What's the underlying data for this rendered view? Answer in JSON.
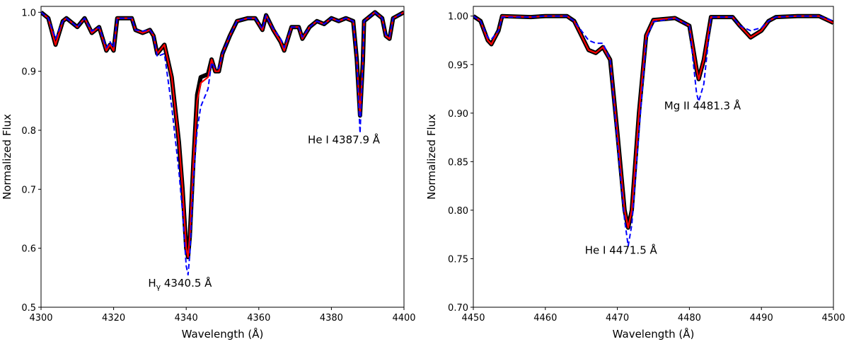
{
  "chart_data": [
    {
      "type": "line",
      "xlabel": "Wavelength (Å)",
      "ylabel": "Normalized Flux",
      "xlim": [
        4300,
        4400
      ],
      "ylim": [
        0.5,
        1.01
      ],
      "xticks": [
        4300,
        4320,
        4340,
        4360,
        4380,
        4400
      ],
      "yticks": [
        0.5,
        0.6,
        0.7,
        0.8,
        0.9,
        1.0
      ],
      "ytick_decimals": 1,
      "grid": false,
      "x": [
        4300,
        4302,
        4304,
        4306,
        4307,
        4310,
        4312,
        4314,
        4316,
        4318,
        4319,
        4320,
        4321,
        4325,
        4326,
        4328,
        4330,
        4331,
        4332,
        4334,
        4336,
        4338,
        4339,
        4340,
        4340.5,
        4341,
        4342,
        4343,
        4344,
        4346,
        4347,
        4348,
        4349,
        4350,
        4352,
        4354,
        4357,
        4359,
        4361,
        4362,
        4364,
        4366,
        4367,
        4369,
        4371,
        4372,
        4374,
        4376,
        4378,
        4380,
        4382,
        4384,
        4386,
        4387,
        4387.9,
        4388.7,
        4389,
        4392,
        4394,
        4395,
        4396,
        4397,
        4400
      ],
      "series": [
        {
          "color": "#000000",
          "style": "solid-thick",
          "values": [
            1.0,
            0.99,
            0.945,
            0.985,
            0.99,
            0.975,
            0.99,
            0.965,
            0.975,
            0.935,
            0.945,
            0.935,
            0.99,
            0.99,
            0.97,
            0.965,
            0.97,
            0.96,
            0.93,
            0.945,
            0.89,
            0.78,
            0.7,
            0.6,
            0.585,
            0.62,
            0.75,
            0.86,
            0.89,
            0.895,
            0.92,
            0.9,
            0.9,
            0.93,
            0.96,
            0.985,
            0.99,
            0.99,
            0.97,
            0.995,
            0.97,
            0.95,
            0.935,
            0.975,
            0.975,
            0.955,
            0.975,
            0.985,
            0.98,
            0.99,
            0.985,
            0.99,
            0.985,
            0.92,
            0.825,
            0.92,
            0.985,
            1.0,
            0.99,
            0.96,
            0.955,
            0.99,
            1.0
          ]
        },
        {
          "color": "#ff0000",
          "style": "solid",
          "values": [
            1.0,
            0.99,
            0.945,
            0.985,
            0.99,
            0.975,
            0.99,
            0.965,
            0.975,
            0.935,
            0.945,
            0.935,
            0.99,
            0.99,
            0.97,
            0.965,
            0.97,
            0.96,
            0.93,
            0.945,
            0.89,
            0.78,
            0.7,
            0.6,
            0.585,
            0.62,
            0.75,
            0.85,
            0.88,
            0.89,
            0.92,
            0.9,
            0.9,
            0.93,
            0.96,
            0.985,
            0.99,
            0.99,
            0.97,
            0.995,
            0.97,
            0.95,
            0.935,
            0.975,
            0.975,
            0.955,
            0.975,
            0.985,
            0.98,
            0.99,
            0.985,
            0.99,
            0.985,
            0.92,
            0.825,
            0.92,
            0.985,
            1.0,
            0.99,
            0.96,
            0.955,
            0.99,
            1.0
          ]
        },
        {
          "color": "#0000ff",
          "style": "dashed",
          "values": [
            1.0,
            0.99,
            0.955,
            0.985,
            0.99,
            0.975,
            0.99,
            0.968,
            0.975,
            0.94,
            0.95,
            0.94,
            0.99,
            0.99,
            0.97,
            0.968,
            0.97,
            0.962,
            0.925,
            0.93,
            0.84,
            0.73,
            0.66,
            0.57,
            0.555,
            0.59,
            0.72,
            0.8,
            0.84,
            0.87,
            0.915,
            0.905,
            0.905,
            0.93,
            0.96,
            0.985,
            0.99,
            0.99,
            0.972,
            0.995,
            0.972,
            0.955,
            0.94,
            0.975,
            0.975,
            0.958,
            0.975,
            0.985,
            0.98,
            0.99,
            0.985,
            0.99,
            0.985,
            0.92,
            0.795,
            0.92,
            0.985,
            1.0,
            0.99,
            0.962,
            0.958,
            0.99,
            1.0
          ]
        }
      ],
      "annotations": [
        {
          "text": "H",
          "sub": "γ",
          "suffix": " 4340.5 Å",
          "x": 4329.5,
          "y": 0.535
        },
        {
          "text": "He I 4387.9 Å",
          "x": 4373.5,
          "y": 0.778
        }
      ]
    },
    {
      "type": "line",
      "xlabel": "Wavelength (Å)",
      "ylabel": "Normalized Flux",
      "xlim": [
        4450,
        4500
      ],
      "ylim": [
        0.7,
        1.01
      ],
      "xticks": [
        4450,
        4460,
        4470,
        4480,
        4490,
        4500
      ],
      "yticks": [
        0.7,
        0.75,
        0.8,
        0.85,
        0.9,
        0.95,
        1.0
      ],
      "ytick_decimals": 2,
      "grid": false,
      "x": [
        4450,
        4451,
        4452,
        4452.5,
        4453.5,
        4454,
        4458,
        4460,
        4463,
        4464,
        4465,
        4466,
        4467,
        4468,
        4469,
        4470,
        4471,
        4471.5,
        4472,
        4473,
        4474,
        4475,
        4478,
        4480,
        4481,
        4481.3,
        4482,
        4483,
        4486,
        4487,
        4488.5,
        4490,
        4491,
        4492,
        4495,
        4498,
        4500
      ],
      "series": [
        {
          "color": "#000000",
          "style": "solid-thick",
          "values": [
            1.0,
            0.995,
            0.975,
            0.971,
            0.985,
            1.0,
            0.999,
            1.0,
            1.0,
            0.995,
            0.98,
            0.965,
            0.962,
            0.968,
            0.955,
            0.88,
            0.8,
            0.782,
            0.8,
            0.9,
            0.98,
            0.996,
            0.998,
            0.99,
            0.945,
            0.935,
            0.955,
            0.999,
            0.999,
            0.99,
            0.978,
            0.985,
            0.995,
            0.999,
            1.0,
            1.0,
            0.993
          ]
        },
        {
          "color": "#ff0000",
          "style": "solid",
          "values": [
            1.0,
            0.995,
            0.975,
            0.971,
            0.985,
            1.0,
            0.999,
            1.0,
            1.0,
            0.995,
            0.98,
            0.965,
            0.962,
            0.968,
            0.955,
            0.88,
            0.8,
            0.782,
            0.8,
            0.9,
            0.98,
            0.996,
            0.998,
            0.99,
            0.945,
            0.935,
            0.955,
            0.999,
            0.999,
            0.99,
            0.978,
            0.985,
            0.995,
            0.999,
            1.0,
            1.0,
            0.993
          ]
        },
        {
          "color": "#0000ff",
          "style": "dashed",
          "values": [
            1.0,
            0.995,
            0.978,
            0.976,
            0.985,
            0.999,
            0.999,
            1.0,
            1.0,
            0.995,
            0.985,
            0.975,
            0.972,
            0.972,
            0.955,
            0.87,
            0.79,
            0.763,
            0.785,
            0.88,
            0.975,
            0.994,
            0.998,
            0.99,
            0.92,
            0.912,
            0.93,
            0.999,
            0.999,
            0.99,
            0.985,
            0.988,
            0.995,
            0.999,
            1.0,
            1.0,
            0.995
          ]
        }
      ],
      "annotations": [
        {
          "text": "Mg II 4481.3 Å",
          "x": 4476.5,
          "y": 0.904
        },
        {
          "text": "He I 4471.5 Å",
          "x": 4465.5,
          "y": 0.755
        }
      ]
    }
  ]
}
